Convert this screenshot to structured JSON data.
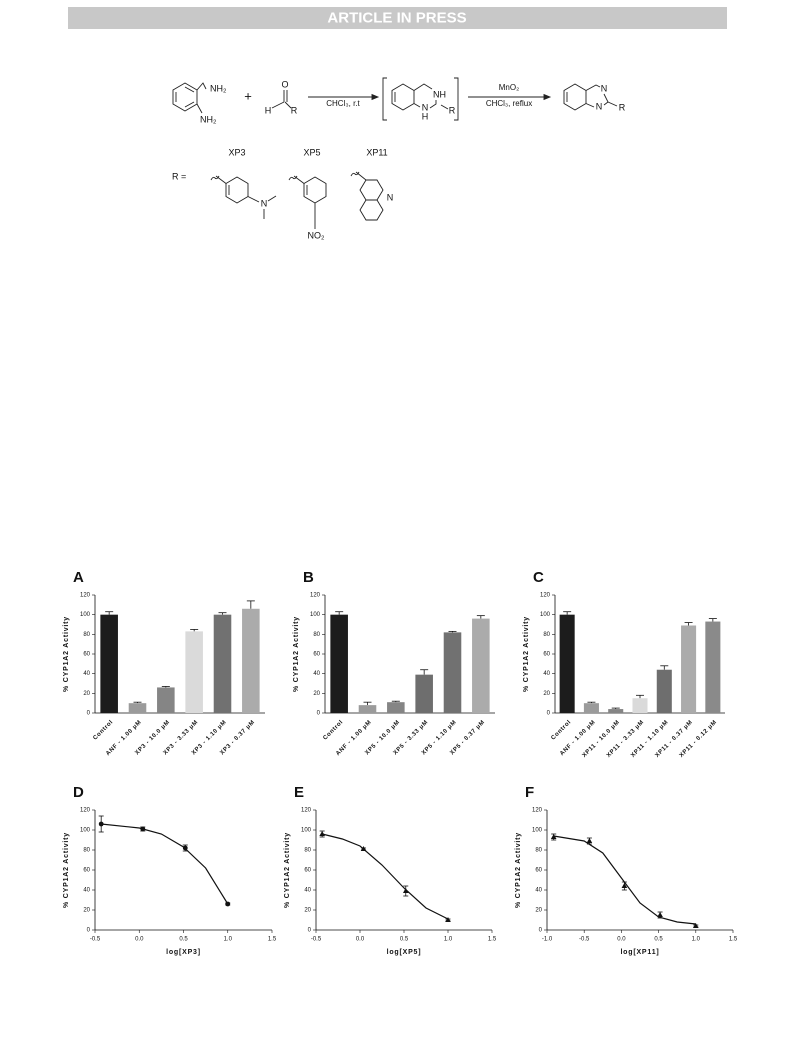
{
  "header": {
    "title": "ARTICLE IN PRESS"
  },
  "scheme": {
    "labels": [
      "NH₂",
      "NH₂",
      "+",
      "O",
      "H",
      "R",
      "CHCl₃, r.t",
      "NH",
      "R",
      "N",
      "H",
      "MnO₂",
      "CHCl₃, reflux",
      "N",
      "N",
      "R",
      "XP3",
      "XP5",
      "XP11",
      "R =",
      "N",
      "NO₂",
      "N"
    ]
  },
  "chart_data": [
    {
      "type": "bar",
      "label": "A",
      "ylabel": "% CYP1A2 Activity",
      "categories": [
        "Control",
        "ANF - 1.00 μM",
        "XP3 - 10.0 μM",
        "XP3 - 3.33 μM",
        "XP3 - 1.10 μM",
        "XP3 - 0.37 μM"
      ],
      "values": [
        100,
        10,
        26,
        83,
        100,
        106
      ],
      "errors": [
        3,
        1,
        1,
        2,
        2,
        8
      ],
      "colors": [
        "#1c1c1c",
        "#9b9b9b",
        "#858585",
        "#dadada",
        "#717171",
        "#ababab"
      ],
      "ylim": [
        0,
        120
      ],
      "yticks": [
        0,
        20,
        40,
        60,
        80,
        100,
        120
      ]
    },
    {
      "type": "bar",
      "label": "B",
      "ylabel": "% CYP1A2 Activity",
      "categories": [
        "Control",
        "ANF - 1.00 μM",
        "XP5 - 10.0 μM",
        "XP5 - 3.33 μM",
        "XP5 - 1.10 μM",
        "XP5 - 0.37 μM"
      ],
      "values": [
        100,
        8,
        11,
        39,
        82,
        96
      ],
      "errors": [
        3,
        3,
        1,
        5,
        1,
        3
      ],
      "colors": [
        "#1c1c1c",
        "#9b9b9b",
        "#858585",
        "#6e6e6e",
        "#717171",
        "#ababab"
      ],
      "ylim": [
        0,
        120
      ],
      "yticks": [
        0,
        20,
        40,
        60,
        80,
        100,
        120
      ]
    },
    {
      "type": "bar",
      "label": "C",
      "ylabel": "% CYP1A2 Activity",
      "categories": [
        "Control",
        "ANF - 1.00 μM",
        "XP11 - 10.0 μM",
        "XP11 - 3.33 μM",
        "XP11 - 1.10 μM",
        "XP11 - 0.37 μM",
        "XP11 - 0.12 μM"
      ],
      "values": [
        100,
        10,
        4,
        15,
        44,
        89,
        93
      ],
      "errors": [
        3,
        1,
        1,
        3,
        4,
        3,
        3
      ],
      "colors": [
        "#1c1c1c",
        "#9b9b9b",
        "#858585",
        "#dadada",
        "#6e6e6e",
        "#ababab",
        "#8a8a8a"
      ],
      "ylim": [
        0,
        120
      ],
      "yticks": [
        0,
        20,
        40,
        60,
        80,
        100,
        120
      ]
    },
    {
      "type": "scatter",
      "label": "D",
      "ylabel": "% CYP1A2 Activity",
      "xlabel": "log[XP3]",
      "marker": "circle",
      "x": [
        -0.43,
        0.04,
        0.52,
        1.0
      ],
      "values": [
        106,
        101,
        82,
        26
      ],
      "errors": [
        8,
        2,
        3,
        1
      ],
      "fit": {
        "x": [
          -0.43,
          0,
          0.25,
          0.5,
          0.75,
          1.0
        ],
        "y": [
          106,
          102,
          96,
          83,
          62,
          26
        ]
      },
      "xlim": [
        -0.5,
        1.5
      ],
      "xticks": [
        -0.5,
        {
          "value": 0,
          "label": "0.0"
        },
        0.5,
        {
          "value": 1,
          "label": "1.0"
        },
        1.5
      ],
      "ylim": [
        0,
        120
      ],
      "yticks": [
        0,
        20,
        40,
        60,
        80,
        100,
        120
      ]
    },
    {
      "type": "scatter",
      "label": "E",
      "ylabel": "% CYP1A2 Activity",
      "xlabel": "log[XP5]",
      "marker": "triangle",
      "x": [
        -0.43,
        0.04,
        0.52,
        1.0
      ],
      "values": [
        96,
        81,
        39,
        10
      ],
      "errors": [
        3,
        1,
        5,
        1
      ],
      "fit": {
        "x": [
          -0.43,
          -0.2,
          0,
          0.25,
          0.5,
          0.75,
          1.0
        ],
        "y": [
          96,
          91,
          84,
          65,
          42,
          22,
          11
        ]
      },
      "xlim": [
        -0.5,
        1.5
      ],
      "xticks": [
        -0.5,
        {
          "value": 0,
          "label": "0.0"
        },
        0.5,
        {
          "value": 1,
          "label": "1.0"
        },
        1.5
      ],
      "ylim": [
        0,
        120
      ],
      "yticks": [
        0,
        20,
        40,
        60,
        80,
        100,
        120
      ]
    },
    {
      "type": "scatter",
      "label": "F",
      "ylabel": "% CYP1A2 Activity",
      "xlabel": "log[XP11]",
      "marker": "triangle",
      "x": [
        -0.91,
        -0.43,
        0.04,
        0.52,
        1.0
      ],
      "values": [
        93,
        89,
        44,
        15,
        4
      ],
      "errors": [
        3,
        3,
        4,
        3,
        1
      ],
      "fit": {
        "x": [
          -0.91,
          -0.5,
          -0.25,
          0,
          0.25,
          0.5,
          0.75,
          1.0
        ],
        "y": [
          94,
          89,
          77,
          52,
          27,
          13,
          8,
          6
        ]
      },
      "xlim": [
        -1,
        1.5
      ],
      "xticks": [
        {
          "value": -1,
          "label": "-1.0"
        },
        -0.5,
        {
          "value": 0,
          "label": "0.0"
        },
        0.5,
        {
          "value": 1,
          "label": "1.0"
        },
        1.5
      ],
      "ylim": [
        0,
        120
      ],
      "yticks": [
        0,
        20,
        40,
        60,
        80,
        100,
        120
      ]
    }
  ]
}
